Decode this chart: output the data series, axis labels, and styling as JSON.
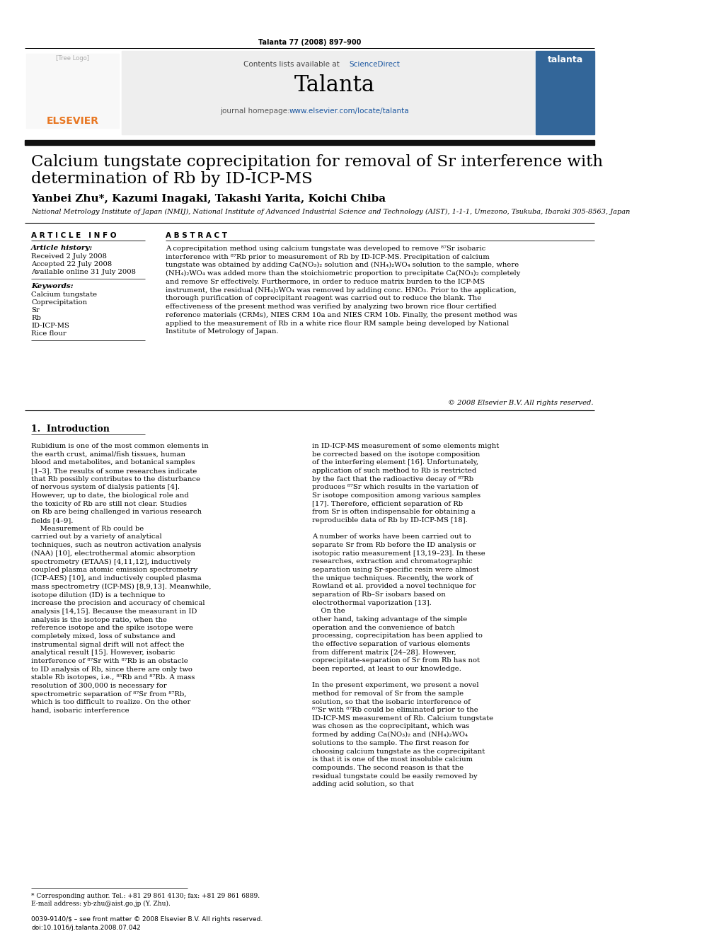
{
  "journal_info": "Talanta 77 (2008) 897–900",
  "contents_text": "Contents lists available at ",
  "sciencedirect_text": "ScienceDirect",
  "journal_name": "Talanta",
  "journal_homepage_text": "journal homepage: ",
  "journal_url": "www.elsevier.com/locate/talanta",
  "title": "Calcium tungstate coprecipitation for removal of Sr interference with\ndetermination of Rb by ID-ICP-MS",
  "authors": "Yanbei Zhu*, Kazumi Inagaki, Takashi Yarita, Koichi Chiba",
  "affiliation": "National Metrology Institute of Japan (NMIJ), National Institute of Advanced Industrial Science and Technology (AIST), 1-1-1, Umezono, Tsukuba, Ibaraki 305-8563, Japan",
  "article_info_header": "A R T I C L E   I N F O",
  "abstract_header": "A B S T R A C T",
  "article_history_header": "Article history:",
  "received": "Received 2 July 2008",
  "accepted": "Accepted 22 July 2008",
  "available": "Available online 31 July 2008",
  "keywords_header": "Keywords:",
  "keywords": [
    "Calcium tungstate",
    "Coprecipitation",
    "Sr",
    "Rb",
    "ID-ICP-MS",
    "Rice flour"
  ],
  "abstract_text": "A coprecipitation method using calcium tungstate was developed to remove ⁸⁷Sr isobaric interference with ⁸⁷Rb prior to measurement of Rb by ID-ICP-MS. Precipitation of calcium tungstate was obtained by adding Ca(NO₃)₂ solution and (NH₄)₂WO₄ solution to the sample, where (NH₄)₂WO₄ was added more than the stoichiometric proportion to precipitate Ca(NO₃)₂ completely and remove Sr effectively. Furthermore, in order to reduce matrix burden to the ICP-MS instrument, the residual (NH₄)₂WO₄ was removed by adding conc. HNO₃. Prior to the application, thorough purification of coprecipitant reagent was carried out to reduce the blank. The effectiveness of the present method was verified by analyzing two brown rice flour certified reference materials (CRMs), NIES CRM 10a and NIES CRM 10b. Finally, the present method was applied to the measurement of Rb in a white rice flour RM sample being developed by National Institute of Metrology of Japan.",
  "copyright": "© 2008 Elsevier B.V. All rights reserved.",
  "section1_title": "1.  Introduction",
  "intro_col1": "Rubidium is one of the most common elements in the earth crust, animal/fish tissues, human blood and metabolites, and botanical samples [1–3]. The results of some researches indicate that Rb possibly contributes to the disturbance of nervous system of dialysis patients [4]. However, up to date, the biological role and the toxicity of Rb are still not clear. Studies on Rb are being challenged in various research fields [4–9].\n    Measurement of Rb could be carried out by a variety of analytical techniques, such as neutron activation analysis (NAA) [10], electrothermal atomic absorption spectrometry (ETAAS) [4,11,12], inductively coupled plasma atomic emission spectrometry (ICP-AES) [10], and inductively coupled plasma mass spectrometry (ICP-MS) [8,9,13]. Meanwhile, isotope dilution (ID) is a technique to increase the precision and accuracy of chemical analysis [14,15]. Because the measurant in ID analysis is the isotope ratio, when the reference isotope and the spike isotope were completely mixed, loss of substance and instrumental signal drift will not affect the analytical result [15]. However, isobaric interference of ⁸⁷Sr with ⁸⁷Rb is an obstacle to ID analysis of Rb, since there are only two stable Rb isotopes, i.e., ⁸⁵Rb and ⁸⁷Rb. A mass resolution of 300,000 is necessary for spectrometric separation of ⁸⁷Sr from ⁸⁷Rb, which is too difficult to realize. On the other hand, isobaric interference",
  "intro_col2": "in ID-ICP-MS measurement of some elements might be corrected based on the isotope composition of the interfering element [16]. Unfortunately, application of such method to Rb is restricted by the fact that the radioactive decay of ⁸⁷Rb produces ⁸⁷Sr which results in the variation of Sr isotope composition among various samples [17]. Therefore, efficient separation of Rb from Sr is often indispensable for obtaining a reproducible data of Rb by ID-ICP-MS [18].\n    A number of works have been carried out to separate Sr from Rb before the ID analysis or isotopic ratio measurement [13,19–23]. In these researches, extraction and chromatographic separation using Sr-specific resin were almost the unique techniques. Recently, the work of Rowland et al. provided a novel technique for separation of Rb–Sr isobars based on electrothermal vaporization [13].\n    On the other hand, taking advantage of the simple operation and the convenience of batch processing, coprecipitation has been applied to the effective separation of various elements from different matrix [24–28]. However, coprecipitate-separation of Sr from Rb has not been reported, at least to our knowledge.\n    In the present experiment, we present a novel method for removal of Sr from the sample solution, so that the isobaric interference of ⁸⁷Sr with ⁸⁷Rb could be eliminated prior to the ID-ICP-MS measurement of Rb. Calcium tungstate was chosen as the coprecipitant, which was formed by adding Ca(NO₃)₂ and (NH₄)₂WO₄ solutions to the sample. The first reason for choosing calcium tungstate as the coprecipitant is that it is one of the most insoluble calcium compounds. The second reason is that the residual tungstate could be easily removed by adding acid solution, so that",
  "footnote_star": "* Corresponding author. Tel.: +81 29 861 4130; fax: +81 29 861 6889.",
  "footnote_email": "E-mail address: yb-zhu@aist.go.jp (Y. Zhu).",
  "footer_issn": "0039-9140/$ – see front matter © 2008 Elsevier B.V. All rights reserved.",
  "footer_doi": "doi:10.1016/j.talanta.2008.07.042",
  "header_bg": "#f0f0f0",
  "dark_bar_color": "#1a1a1a",
  "elsevier_orange": "#e87722",
  "science_direct_blue": "#003087",
  "link_blue": "#0000cc",
  "text_black": "#000000",
  "text_dark": "#1a1a1a",
  "bg_white": "#ffffff"
}
